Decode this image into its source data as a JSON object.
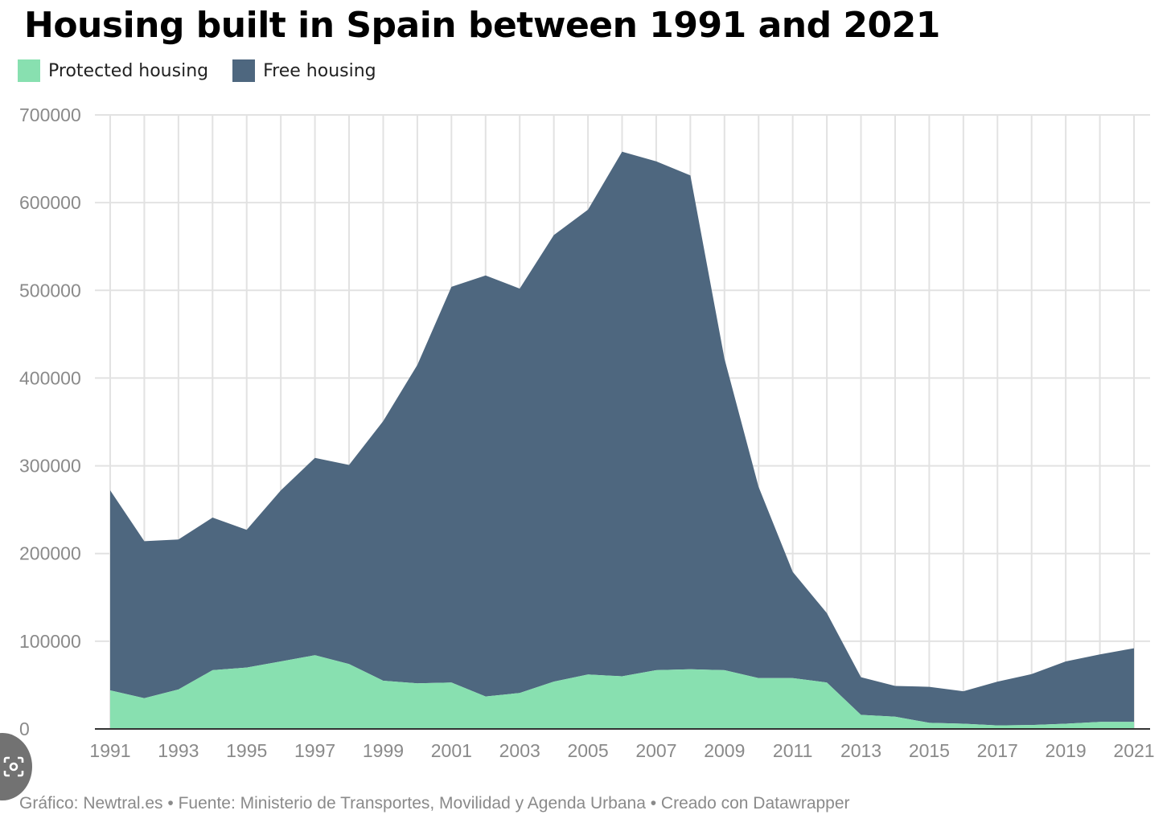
{
  "colors": {
    "protected": "#88e0b0",
    "free": "#4e677f",
    "grid": "#e2e2e2",
    "axis": "#333333"
  },
  "footer": "Gráfico: Newtral.es • Fuente: Ministerio de Transportes, Movilidad y Agenda Urbana • Creado con Datawrapper",
  "chart_data": {
    "type": "area",
    "stacked": true,
    "title": "Housing built in Spain between 1991 and 2021",
    "x": [
      1991,
      1992,
      1993,
      1994,
      1995,
      1996,
      1997,
      1998,
      1999,
      2000,
      2001,
      2002,
      2003,
      2004,
      2005,
      2006,
      2007,
      2008,
      2009,
      2010,
      2011,
      2012,
      2013,
      2014,
      2015,
      2016,
      2017,
      2018,
      2019,
      2020,
      2021
    ],
    "x_tick_labels": [
      "1991",
      "1993",
      "1995",
      "1997",
      "1999",
      "2001",
      "2003",
      "2005",
      "2007",
      "2009",
      "2011",
      "2013",
      "2015",
      "2017",
      "2019",
      "2021"
    ],
    "y_tick_labels": [
      "0",
      "100000",
      "200000",
      "300000",
      "400000",
      "500000",
      "600000",
      "700000"
    ],
    "ylim": [
      0,
      700000
    ],
    "grid": true,
    "legend_position": "top-left",
    "series": [
      {
        "name": "Protected housing",
        "values": [
          44000,
          35000,
          45000,
          67000,
          70000,
          77000,
          84000,
          74000,
          55000,
          52000,
          53000,
          37000,
          41000,
          54000,
          62000,
          60000,
          67000,
          68000,
          67000,
          58000,
          58000,
          53000,
          16000,
          14000,
          7000,
          6000,
          4000,
          4500,
          6000,
          8000,
          8000
        ]
      },
      {
        "name": "Free housing",
        "values": [
          228000,
          179000,
          171000,
          174000,
          157000,
          195000,
          225000,
          227000,
          296000,
          363000,
          451000,
          480000,
          461000,
          509000,
          530000,
          598000,
          580000,
          563000,
          355000,
          218000,
          121000,
          79000,
          43000,
          35000,
          41000,
          37000,
          50000,
          58000,
          71000,
          77000,
          84000
        ]
      }
    ]
  }
}
